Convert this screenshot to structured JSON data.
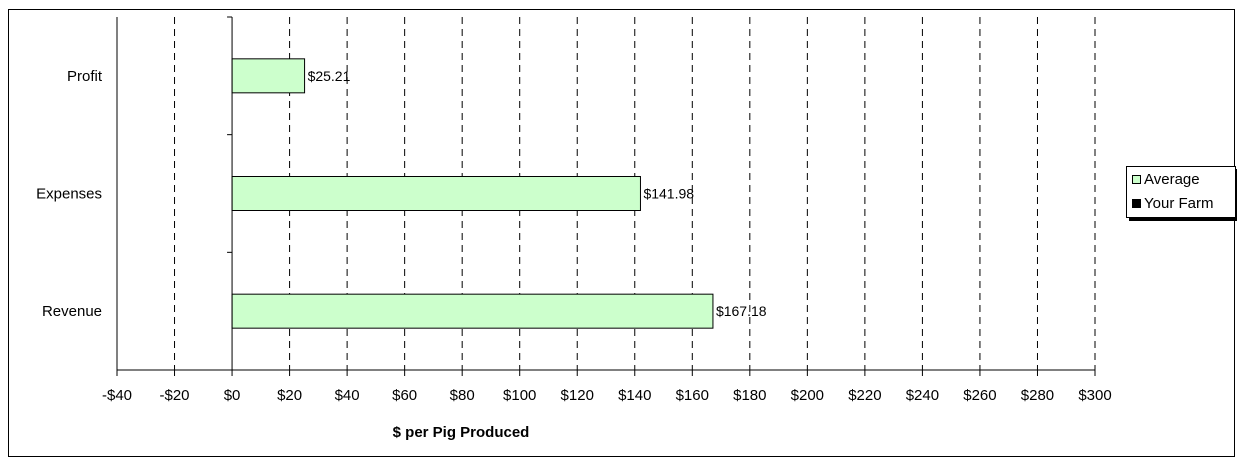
{
  "chart_data": {
    "type": "bar",
    "orientation": "horizontal",
    "title": "",
    "xlabel": "$ per Pig Produced",
    "ylabel": "",
    "categories": [
      "Profit",
      "Expenses",
      "Revenue"
    ],
    "series": [
      {
        "name": "Average",
        "values": [
          25.21,
          141.98,
          167.18
        ],
        "labels": [
          "$25.21",
          "$141.98",
          "$167.18"
        ],
        "color": "#ccffcc"
      },
      {
        "name": "Your Farm",
        "values": [
          null,
          null,
          null
        ],
        "labels": [
          "",
          "",
          ""
        ],
        "color": "#000000"
      }
    ],
    "xlim": [
      -40,
      300
    ],
    "xtick_step": 20,
    "xtick_labels": [
      "-$40",
      "-$20",
      "$0",
      "$20",
      "$40",
      "$60",
      "$80",
      "$100",
      "$120",
      "$140",
      "$160",
      "$180",
      "$200",
      "$220",
      "$240",
      "$260",
      "$280",
      "$300"
    ],
    "grid": "vertical-dashed",
    "legend_position": "right"
  }
}
